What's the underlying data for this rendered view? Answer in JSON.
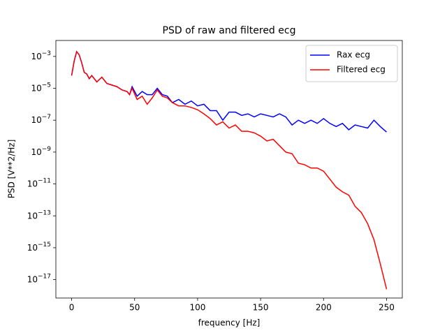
{
  "chart_data": {
    "type": "line",
    "title": "PSD of raw and filtered ecg",
    "xlabel": "frequency [Hz]",
    "ylabel": "PSD [V**2/Hz]",
    "x": [
      0,
      2,
      4,
      6,
      8,
      10,
      12,
      14,
      16,
      20,
      24,
      28,
      32,
      36,
      40,
      44,
      46,
      48,
      52,
      56,
      60,
      64,
      68,
      72,
      76,
      80,
      85,
      90,
      95,
      100,
      105,
      110,
      115,
      120,
      125,
      130,
      135,
      140,
      145,
      150,
      155,
      160,
      165,
      170,
      175,
      180,
      185,
      190,
      195,
      200,
      205,
      210,
      215,
      220,
      225,
      230,
      235,
      240,
      245,
      250
    ],
    "series": [
      {
        "name": "Rax ecg",
        "color": "#0000ff",
        "values": [
          6.3e-05,
          0.0005,
          0.002,
          0.00126,
          0.0004,
          0.0001,
          7.9e-05,
          4e-05,
          6.3e-05,
          2.5e-05,
          5e-05,
          2e-05,
          1.6e-05,
          1.26e-05,
          7.9e-06,
          6.3e-06,
          4e-06,
          1.26e-05,
          3.2e-06,
          6.3e-06,
          4e-06,
          4e-06,
          1e-05,
          4e-06,
          3.2e-06,
          1.26e-06,
          2e-06,
          1e-06,
          1.6e-06,
          7.9e-07,
          1e-06,
          4e-07,
          4e-07,
          1e-07,
          3.2e-07,
          3.2e-07,
          2e-07,
          2.5e-07,
          1.6e-07,
          2.5e-07,
          2e-07,
          1.6e-07,
          2.5e-07,
          1.6e-07,
          5e-08,
          1e-07,
          6.3e-08,
          1e-07,
          6.3e-08,
          1.26e-07,
          6.3e-08,
          4e-08,
          6.3e-08,
          2.5e-08,
          5e-08,
          4e-08,
          3.2e-08,
          1e-07,
          4e-08,
          1.8e-08
        ]
      },
      {
        "name": "Filtered ecg",
        "color": "#ff0000",
        "values": [
          6.3e-05,
          0.0005,
          0.002,
          0.00126,
          0.0004,
          0.0001,
          7.9e-05,
          4e-05,
          6.3e-05,
          2.5e-05,
          5e-05,
          2e-05,
          1.6e-05,
          1.26e-05,
          7.9e-06,
          6.3e-06,
          4e-06,
          1e-05,
          2e-06,
          3.2e-06,
          1e-06,
          2.5e-06,
          7.9e-06,
          3.2e-06,
          2.5e-06,
          1.26e-06,
          7.9e-07,
          7.9e-07,
          6.3e-07,
          4.5e-07,
          2.5e-07,
          1.26e-07,
          5e-08,
          7.9e-08,
          3.2e-08,
          5e-08,
          2e-08,
          2e-08,
          1.6e-08,
          1e-08,
          5e-09,
          6.3e-09,
          2.5e-09,
          1e-09,
          7.9e-10,
          2e-10,
          1.6e-10,
          1e-10,
          1e-10,
          6.3e-11,
          2e-11,
          6.3e-12,
          3.2e-12,
          2e-12,
          4e-13,
          1.6e-13,
          3.2e-14,
          3.2e-15,
          1e-16,
          2.5e-18
        ]
      }
    ],
    "xlim": [
      -12.5,
      262.5
    ],
    "xticks": [
      0,
      50,
      100,
      150,
      200,
      250
    ],
    "ylim": [
      7e-19,
      0.01
    ],
    "yscale": "log",
    "yticks": [
      {
        "value": 0.001,
        "label": "10−3"
      },
      {
        "value": 1e-05,
        "label": "10−5"
      },
      {
        "value": 1e-07,
        "label": "10−7"
      },
      {
        "value": 1e-09,
        "label": "10−9"
      },
      {
        "value": 1e-11,
        "label": "10−11"
      },
      {
        "value": 1e-13,
        "label": "10−13"
      },
      {
        "value": 1e-15,
        "label": "10−15"
      },
      {
        "value": 1e-17,
        "label": "10−17"
      }
    ],
    "legend": "upper right"
  }
}
